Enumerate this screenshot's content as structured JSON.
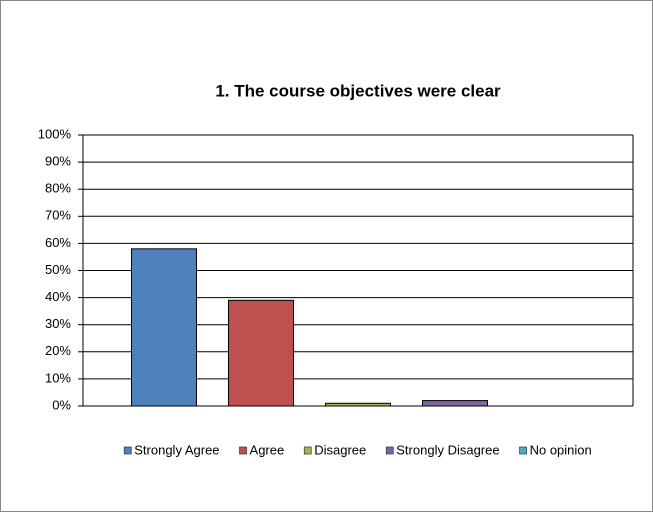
{
  "chart_data": {
    "type": "bar",
    "title": "1. The course objectives were clear",
    "series": [
      {
        "name": "Strongly Agree",
        "color": "#4f81bd",
        "values": [
          58
        ]
      },
      {
        "name": "Agree",
        "color": "#c0504d",
        "values": [
          39
        ]
      },
      {
        "name": "Disagree",
        "color": "#9bbb59",
        "values": [
          1
        ]
      },
      {
        "name": "Strongly Disagree",
        "color": "#8064a2",
        "values": [
          2
        ]
      },
      {
        "name": "No opinion",
        "color": "#4bacc6",
        "values": [
          0
        ]
      }
    ],
    "ylim": [
      0,
      100
    ],
    "yticks": [
      {
        "value": 0,
        "label": "0%"
      },
      {
        "value": 10,
        "label": "10%"
      },
      {
        "value": 20,
        "label": "20%"
      },
      {
        "value": 30,
        "label": "30%"
      },
      {
        "value": 40,
        "label": "40%"
      },
      {
        "value": 50,
        "label": "50%"
      },
      {
        "value": 60,
        "label": "60%"
      },
      {
        "value": 70,
        "label": "70%"
      },
      {
        "value": 80,
        "label": "80%"
      },
      {
        "value": 90,
        "label": "90%"
      },
      {
        "value": 100,
        "label": "100%"
      }
    ],
    "grid": true,
    "legend": "bottom"
  }
}
